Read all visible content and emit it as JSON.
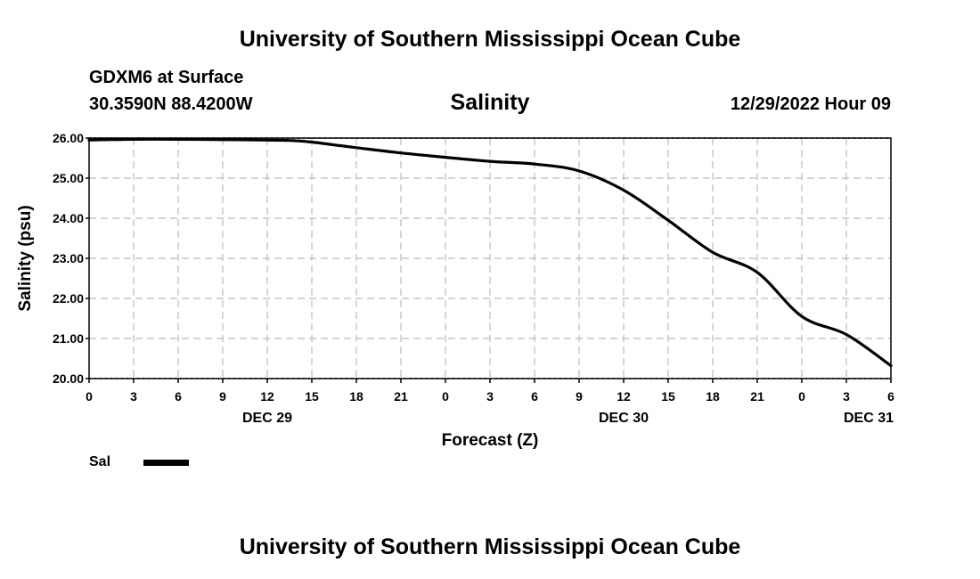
{
  "header": {
    "top_title": "University of Southern Mississippi Ocean Cube",
    "station": "GDXM6 at Surface",
    "coords": "30.3590N  88.4200W",
    "chart_title": "Salinity",
    "timestamp": "12/29/2022 Hour 09",
    "bottom_title": "University of Southern Mississippi Ocean Cube"
  },
  "legend": {
    "label": "Sal",
    "color": "#000000"
  },
  "chart_data": {
    "type": "line",
    "title": "Salinity",
    "xlabel": "Forecast (Z)",
    "ylabel": "Salinity (psu)",
    "ylim": [
      20.0,
      26.0
    ],
    "xlim": [
      0,
      54
    ],
    "y_ticks": [
      "20.00",
      "21.00",
      "22.00",
      "23.00",
      "24.00",
      "25.00",
      "26.00"
    ],
    "x_ticks": [
      {
        "hours": 0,
        "label": "0"
      },
      {
        "hours": 3,
        "label": "3"
      },
      {
        "hours": 6,
        "label": "6"
      },
      {
        "hours": 9,
        "label": "9"
      },
      {
        "hours": 12,
        "label": "12"
      },
      {
        "hours": 15,
        "label": "15"
      },
      {
        "hours": 18,
        "label": "18"
      },
      {
        "hours": 21,
        "label": "21"
      },
      {
        "hours": 24,
        "label": "0"
      },
      {
        "hours": 27,
        "label": "3"
      },
      {
        "hours": 30,
        "label": "6"
      },
      {
        "hours": 33,
        "label": "9"
      },
      {
        "hours": 36,
        "label": "12"
      },
      {
        "hours": 39,
        "label": "15"
      },
      {
        "hours": 42,
        "label": "18"
      },
      {
        "hours": 45,
        "label": "21"
      },
      {
        "hours": 48,
        "label": "0"
      },
      {
        "hours": 51,
        "label": "3"
      },
      {
        "hours": 54,
        "label": "6"
      }
    ],
    "date_labels": [
      {
        "hours": 12,
        "label": "DEC 29"
      },
      {
        "hours": 36,
        "label": "DEC 30"
      },
      {
        "hours": 52.5,
        "label": "DEC 31"
      }
    ],
    "grid": true,
    "series": [
      {
        "name": "Sal",
        "x": [
          0,
          3,
          6,
          9,
          12,
          13.5,
          15,
          18,
          21,
          24,
          27,
          30,
          33,
          36,
          39,
          42,
          45,
          48,
          51,
          54
        ],
        "values": [
          25.95,
          25.97,
          25.97,
          25.96,
          25.95,
          25.94,
          25.9,
          25.76,
          25.63,
          25.52,
          25.42,
          25.35,
          25.18,
          24.7,
          23.95,
          23.15,
          22.65,
          21.55,
          21.1,
          20.32
        ]
      }
    ]
  }
}
